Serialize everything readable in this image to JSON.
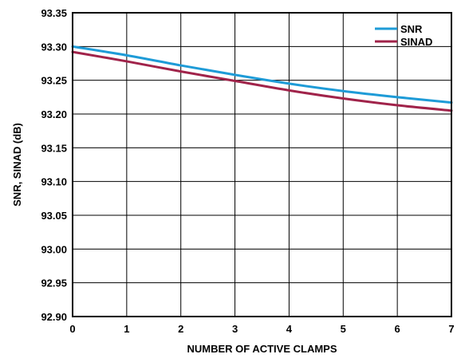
{
  "chart_data": {
    "type": "line",
    "title": "",
    "xlabel": "NUMBER OF ACTIVE CLAMPS",
    "ylabel": "SNR, SINAD (dB)",
    "xlim": [
      0,
      7
    ],
    "ylim": [
      92.9,
      93.35
    ],
    "xticks": [
      "0",
      "1",
      "2",
      "3",
      "4",
      "5",
      "6",
      "7"
    ],
    "yticks": [
      "93.35",
      "93.30",
      "93.25",
      "93.20",
      "93.15",
      "93.10",
      "93.05",
      "93.00",
      "92.95",
      "92.90"
    ],
    "grid": true,
    "legend_position": "top-right",
    "x": [
      0,
      1,
      2,
      3,
      4,
      5,
      6,
      7
    ],
    "series": [
      {
        "name": "SNR",
        "color": "#1e9bd7",
        "values": [
          93.3,
          93.287,
          93.272,
          93.258,
          93.245,
          93.234,
          93.225,
          93.217
        ]
      },
      {
        "name": "SINAD",
        "color": "#a0234a",
        "values": [
          93.292,
          93.278,
          93.263,
          93.249,
          93.235,
          93.223,
          93.213,
          93.205
        ]
      }
    ]
  }
}
